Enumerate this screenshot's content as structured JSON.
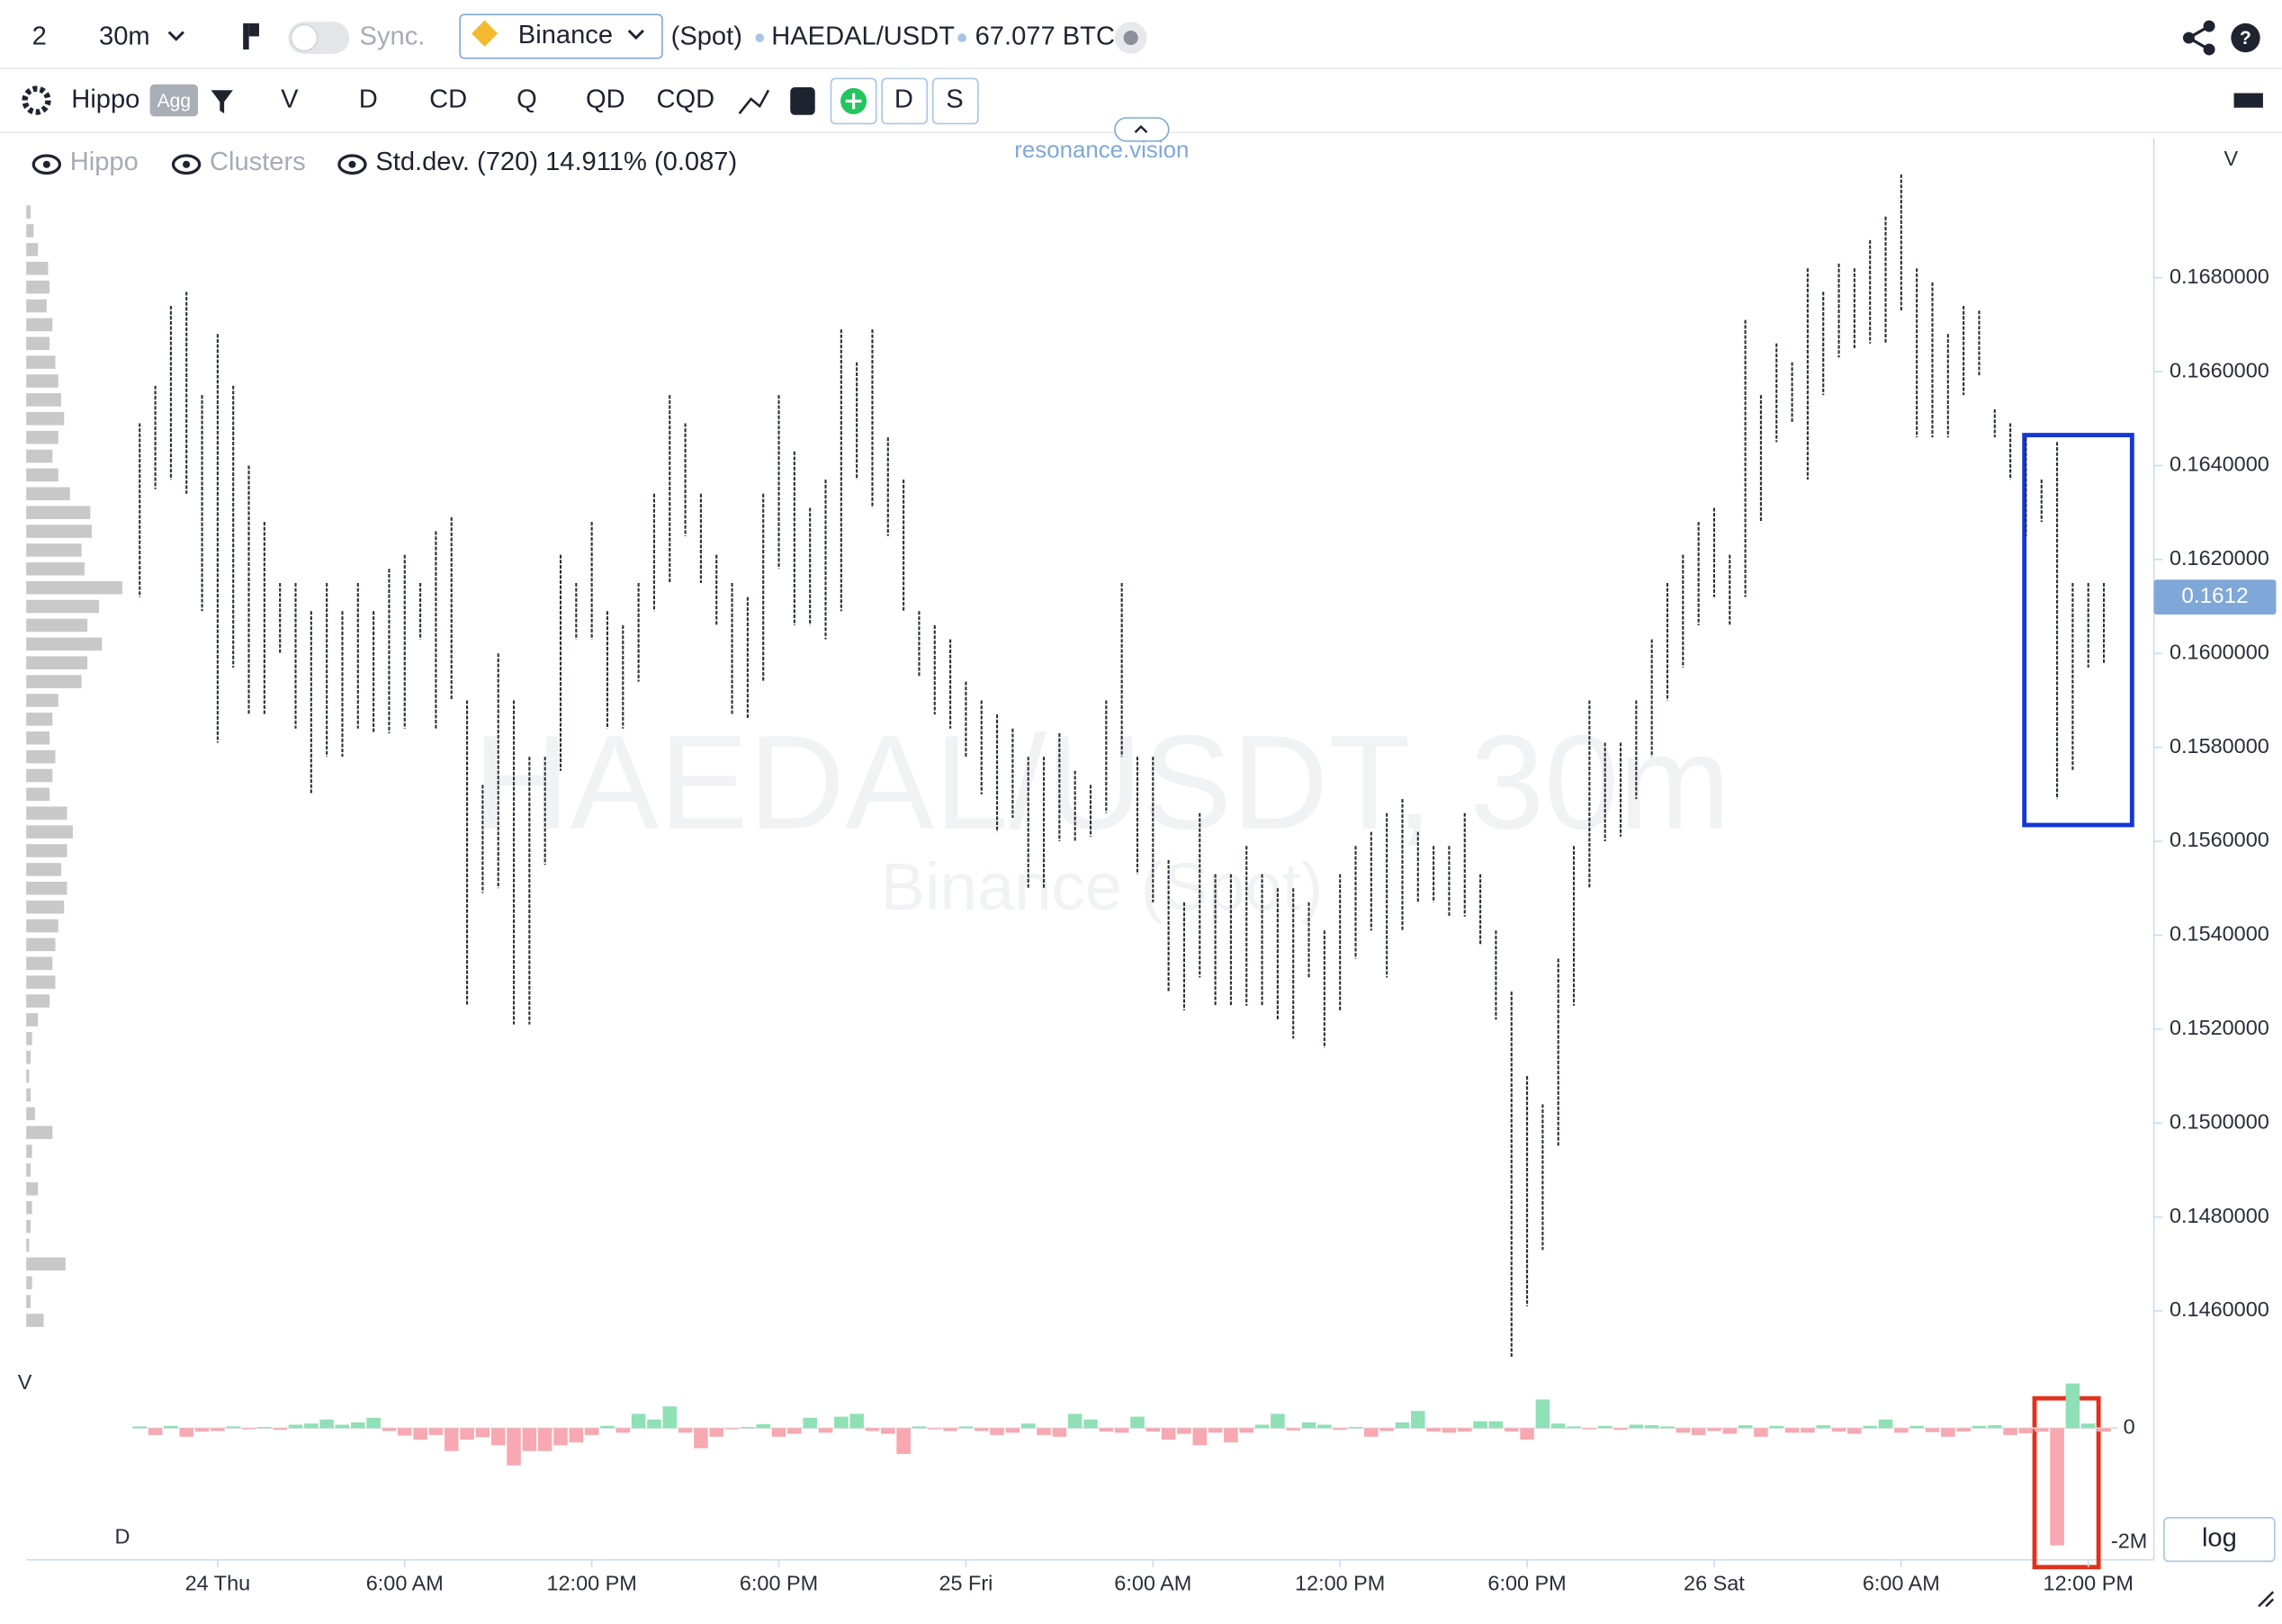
{
  "toolbar": {
    "layout_count": "2",
    "interval": "30m",
    "sync": "Sync.",
    "exchange": "Binance",
    "market": "(Spot)",
    "symbol": "HAEDAL/USDT",
    "volume": "67.077 BTC"
  },
  "indicator_bar": {
    "name": "Hippo",
    "badge": "Agg",
    "buttons": [
      "V",
      "D",
      "CD",
      "Q",
      "QD",
      "CQD",
      "D",
      "S"
    ]
  },
  "brand": "resonance.vision",
  "legend": {
    "items": [
      "Hippo",
      "Clusters",
      "Std.dev. (720) 14.911% (0.087)"
    ]
  },
  "log_button": "log",
  "chart_data": {
    "type": "hilo",
    "title": "HAEDAL/USDT, 30m",
    "subtitle": "Binance (Spot)",
    "y_axis_label": "V",
    "color": "#2b2f3a",
    "categories": [
      null,
      null,
      null,
      null,
      null,
      "24 Thu",
      null,
      null,
      null,
      null,
      null,
      null,
      null,
      null,
      null,
      null,
      null,
      "6:00 AM",
      null,
      null,
      null,
      null,
      null,
      null,
      null,
      null,
      null,
      null,
      null,
      "12:00 PM",
      null,
      null,
      null,
      null,
      null,
      null,
      null,
      null,
      null,
      null,
      null,
      "6:00 PM",
      null,
      null,
      null,
      null,
      null,
      null,
      null,
      null,
      null,
      null,
      null,
      "25 Fri",
      null,
      null,
      null,
      null,
      null,
      null,
      null,
      null,
      null,
      null,
      null,
      "6:00 AM",
      null,
      null,
      null,
      null,
      null,
      null,
      null,
      null,
      null,
      null,
      null,
      "12:00 PM",
      null,
      null,
      null,
      null,
      null,
      null,
      null,
      null,
      null,
      null,
      null,
      "6:00 PM",
      null,
      null,
      null,
      null,
      null,
      null,
      null,
      null,
      null,
      null,
      null,
      "26 Sat",
      null,
      null,
      null,
      null,
      null,
      null,
      null,
      null,
      null,
      null,
      null,
      "6:00 AM",
      null,
      null,
      null,
      null,
      null,
      null,
      null,
      null,
      null,
      null,
      null,
      "12:00 PM",
      null
    ],
    "high": [
      0.1649,
      0.1657,
      0.1674,
      0.1677,
      0.1655,
      0.1668,
      0.1657,
      0.164,
      0.1628,
      0.1615,
      0.1615,
      0.1609,
      0.1615,
      0.1609,
      0.1615,
      0.1609,
      0.1618,
      0.1621,
      0.1615,
      0.1626,
      0.1629,
      0.159,
      0.1572,
      0.16,
      0.159,
      0.1578,
      0.1578,
      0.1621,
      0.1615,
      0.1628,
      0.1609,
      0.1606,
      0.1615,
      0.1634,
      0.1655,
      0.1649,
      0.1634,
      0.1621,
      0.1615,
      0.1612,
      0.1634,
      0.1655,
      0.1643,
      0.1631,
      0.1637,
      0.1669,
      0.1662,
      0.1669,
      0.1646,
      0.1637,
      0.1609,
      0.1606,
      0.1603,
      0.1594,
      0.159,
      0.1587,
      0.1584,
      0.1578,
      0.1578,
      0.1583,
      0.1575,
      0.1572,
      0.159,
      0.1615,
      0.1578,
      0.1578,
      0.1556,
      0.1547,
      0.1566,
      0.1553,
      0.1553,
      0.1559,
      0.1553,
      0.155,
      0.155,
      0.1547,
      0.1541,
      0.1553,
      0.1559,
      0.1562,
      0.1566,
      0.1569,
      0.1562,
      0.1559,
      0.1559,
      0.1566,
      0.1553,
      0.1541,
      0.1528,
      0.151,
      0.1504,
      0.1535,
      0.1559,
      0.159,
      0.1581,
      0.1581,
      0.159,
      0.1603,
      0.1615,
      0.1621,
      0.1628,
      0.1631,
      0.1621,
      0.1671,
      0.1655,
      0.1666,
      0.1662,
      0.1682,
      0.1677,
      0.1683,
      0.1682,
      0.1688,
      0.1693,
      0.1702,
      0.1682,
      0.1679,
      0.1668,
      0.1674,
      0.1673,
      0.1652,
      0.1649,
      0.1646,
      0.1637,
      0.1645,
      0.1615,
      0.1615,
      0.1615
    ],
    "low": [
      0.1612,
      0.1635,
      0.1637,
      0.1634,
      0.1609,
      0.1581,
      0.1597,
      0.1587,
      0.1587,
      0.16,
      0.1584,
      0.157,
      0.1578,
      0.1578,
      0.1584,
      0.1583,
      0.1583,
      0.1584,
      0.1603,
      0.1584,
      0.159,
      0.1525,
      0.1549,
      0.155,
      0.1521,
      0.1521,
      0.1555,
      0.1575,
      0.1603,
      0.1603,
      0.1584,
      0.1584,
      0.1594,
      0.1609,
      0.1615,
      0.1625,
      0.1615,
      0.1606,
      0.1587,
      0.1586,
      0.1594,
      0.1618,
      0.1606,
      0.1606,
      0.1603,
      0.1609,
      0.1637,
      0.1631,
      0.1625,
      0.1609,
      0.1595,
      0.1587,
      0.1584,
      0.1578,
      0.157,
      0.1562,
      0.1565,
      0.155,
      0.155,
      0.156,
      0.156,
      0.1561,
      0.1566,
      0.1578,
      0.1553,
      0.1547,
      0.1528,
      0.1524,
      0.1531,
      0.1525,
      0.1525,
      0.1525,
      0.1525,
      0.1522,
      0.1518,
      0.1531,
      0.1516,
      0.1524,
      0.1535,
      0.1541,
      0.1531,
      0.1541,
      0.1547,
      0.1547,
      0.1544,
      0.1544,
      0.1538,
      0.1522,
      0.145,
      0.1461,
      0.1473,
      0.1495,
      0.1525,
      0.155,
      0.156,
      0.1561,
      0.1569,
      0.1578,
      0.159,
      0.1597,
      0.1606,
      0.1612,
      0.1606,
      0.1612,
      0.1628,
      0.1645,
      0.1649,
      0.1637,
      0.1655,
      0.1663,
      0.1665,
      0.1666,
      0.1666,
      0.1673,
      0.1646,
      0.1646,
      0.1646,
      0.1655,
      0.1659,
      0.1646,
      0.1637,
      0.1625,
      0.1628,
      0.1569,
      0.1575,
      0.1597,
      0.1598
    ],
    "ylim": [
      0.14479,
      0.17097
    ],
    "yticks": [
      {
        "value": 0.146,
        "label": "0.1460000"
      },
      {
        "value": 0.148,
        "label": "0.1480000"
      },
      {
        "value": 0.15,
        "label": "0.1500000"
      },
      {
        "value": 0.152,
        "label": "0.1520000"
      },
      {
        "value": 0.154,
        "label": "0.1540000"
      },
      {
        "value": 0.156,
        "label": "0.1560000"
      },
      {
        "value": 0.158,
        "label": "0.1580000"
      },
      {
        "value": 0.16,
        "label": "0.1600000"
      },
      {
        "value": 0.162,
        "label": "0.1620000"
      },
      {
        "value": 0.164,
        "label": "0.1640000"
      },
      {
        "value": 0.166,
        "label": "0.1660000"
      },
      {
        "value": 0.168,
        "label": "0.1680000"
      }
    ],
    "last_price": 0.1612,
    "last_price_color": "#7fa8d8",
    "delta": {
      "label": "D",
      "positive_color": "#8fe0b5",
      "negative_color": "#f7a8b0",
      "ylim": [
        -2250000,
        800000
      ],
      "yticks": [
        0,
        {
          "value": -2000000,
          "label": "-2M"
        }
      ],
      "values": [
        30000,
        -120000,
        40000,
        -150000,
        -60000,
        -50000,
        30000,
        -20000,
        20000,
        -30000,
        60000,
        80000,
        150000,
        60000,
        100000,
        180000,
        -50000,
        -130000,
        -200000,
        -120000,
        -400000,
        -200000,
        -160000,
        -300000,
        -650000,
        -400000,
        -400000,
        -300000,
        -250000,
        -120000,
        40000,
        -80000,
        250000,
        150000,
        380000,
        -80000,
        -350000,
        -150000,
        -20000,
        20000,
        70000,
        -150000,
        -100000,
        180000,
        -80000,
        200000,
        250000,
        -50000,
        -100000,
        -450000,
        30000,
        -20000,
        -50000,
        30000,
        -50000,
        -120000,
        -80000,
        80000,
        -120000,
        -150000,
        250000,
        150000,
        -60000,
        -80000,
        200000,
        -60000,
        -200000,
        -100000,
        -300000,
        -80000,
        -250000,
        -80000,
        60000,
        250000,
        -40000,
        100000,
        60000,
        -30000,
        20000,
        -150000,
        -50000,
        100000,
        300000,
        -60000,
        -80000,
        -60000,
        120000,
        120000,
        -60000,
        -200000,
        500000,
        80000,
        30000,
        -20000,
        40000,
        -30000,
        60000,
        50000,
        30000,
        -80000,
        -120000,
        -50000,
        -100000,
        50000,
        -150000,
        40000,
        -80000,
        -80000,
        50000,
        -60000,
        -100000,
        40000,
        150000,
        -80000,
        40000,
        -70000,
        -150000,
        -60000,
        40000,
        50000,
        -120000,
        -90000,
        -60000,
        -2050000,
        780000,
        80000,
        -60000
      ]
    },
    "volume_profile": {
      "label": "V",
      "color": "#c8c8c8",
      "levels": [
        0.1694,
        0.169,
        0.1686,
        0.1682,
        0.1678,
        0.1674,
        0.167,
        0.1666,
        0.1662,
        0.1658,
        0.1654,
        0.165,
        0.1646,
        0.1642,
        0.1638,
        0.1634,
        0.163,
        0.1626,
        0.1622,
        0.1618,
        0.1614,
        0.161,
        0.1606,
        0.1602,
        0.1598,
        0.1594,
        0.159,
        0.1586,
        0.1582,
        0.1578,
        0.1574,
        0.157,
        0.1566,
        0.1562,
        0.1558,
        0.1554,
        0.155,
        0.1546,
        0.1542,
        0.1538,
        0.1534,
        0.153,
        0.1526,
        0.1522,
        0.1518,
        0.1514,
        0.151,
        0.1506,
        0.1502,
        0.1498,
        0.1494,
        0.149,
        0.1486,
        0.1482,
        0.1478,
        0.1474,
        0.147,
        0.1466,
        0.1462,
        0.1458
      ],
      "values": [
        3,
        5,
        8,
        15,
        16,
        14,
        18,
        16,
        20,
        22,
        24,
        26,
        22,
        18,
        22,
        30,
        44,
        45,
        38,
        40,
        66,
        50,
        42,
        52,
        42,
        38,
        22,
        18,
        16,
        20,
        18,
        16,
        28,
        32,
        28,
        24,
        28,
        26,
        22,
        20,
        18,
        20,
        16,
        8,
        4,
        3,
        2,
        3,
        6,
        18,
        4,
        3,
        8,
        4,
        3,
        2,
        27,
        4,
        3,
        12
      ]
    }
  }
}
